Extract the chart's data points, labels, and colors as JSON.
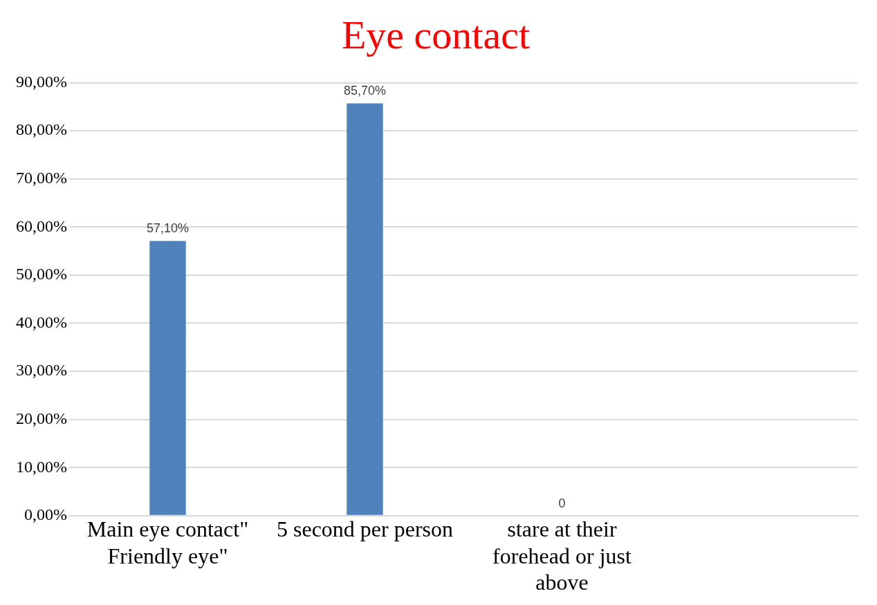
{
  "chart_data": {
    "type": "bar",
    "title": "Eye contact",
    "categories": [
      "Main eye contact\" Friendly eye\"",
      "5 second per person",
      "stare at their forehead or just above",
      null
    ],
    "values": [
      57.1,
      85.7,
      0,
      null
    ],
    "color": "#4f81bd",
    "value_labels": [
      "57,10%",
      "85,70%",
      "0",
      null
    ],
    "ylim": [
      0,
      90
    ],
    "yticks": [
      {
        "value": 0,
        "label": "0,00%"
      },
      {
        "value": 10,
        "label": "10,00%"
      },
      {
        "value": 20,
        "label": "20,00%"
      },
      {
        "value": 30,
        "label": "30,00%"
      },
      {
        "value": 40,
        "label": "40,00%"
      },
      {
        "value": 50,
        "label": "50,00%"
      },
      {
        "value": 60,
        "label": "60,00%"
      },
      {
        "value": 70,
        "label": "70,00%"
      },
      {
        "value": 80,
        "label": "80,00%"
      },
      {
        "value": 90,
        "label": "90,00%"
      }
    ],
    "grid": "y",
    "legend": false
  }
}
